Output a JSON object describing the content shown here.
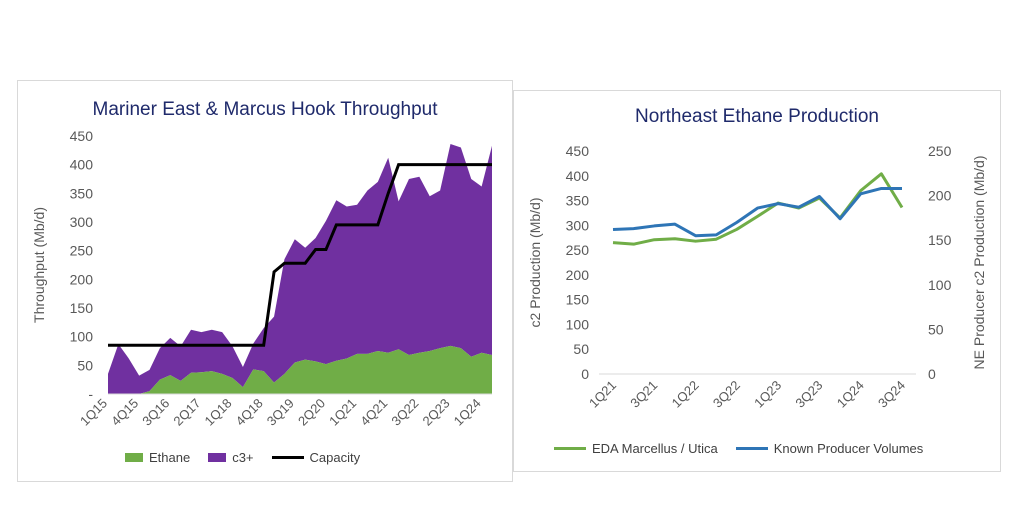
{
  "chart_data": [
    {
      "type": "area",
      "title": "Mariner East & Marcus Hook Throughput",
      "ylabel": "Throughput (Mb/d)",
      "ylim": [
        0,
        450
      ],
      "yticks": [
        "-",
        "50",
        "100",
        "150",
        "200",
        "250",
        "300",
        "350",
        "400",
        "450"
      ],
      "x_labels": [
        "1Q15",
        "4Q15",
        "3Q16",
        "2Q17",
        "1Q18",
        "4Q18",
        "3Q19",
        "2Q20",
        "1Q21",
        "4Q21",
        "3Q22",
        "2Q23",
        "1Q24"
      ],
      "series": [
        {
          "name": "Ethane",
          "type": "area",
          "color": "#70ad47",
          "values": [
            0,
            0,
            0,
            0,
            5,
            25,
            33,
            23,
            37,
            38,
            40,
            35,
            28,
            12,
            43,
            40,
            20,
            35,
            55,
            60,
            57,
            52,
            58,
            62,
            70,
            70,
            75,
            72,
            78,
            68,
            72,
            75,
            80,
            84,
            80,
            65,
            72,
            68
          ]
        },
        {
          "name": "c3+",
          "type": "area",
          "color": "#7030a0",
          "values": [
            35,
            87,
            62,
            32,
            37,
            55,
            65,
            60,
            75,
            70,
            72,
            73,
            55,
            35,
            45,
            75,
            115,
            200,
            215,
            195,
            215,
            250,
            280,
            265,
            260,
            285,
            295,
            340,
            258,
            307,
            307,
            270,
            275,
            352,
            350,
            310,
            290,
            365
          ]
        },
        {
          "name": "Capacity",
          "type": "line",
          "color": "#000000",
          "values": [
            85,
            85,
            85,
            85,
            85,
            85,
            85,
            85,
            85,
            85,
            85,
            85,
            85,
            85,
            85,
            85,
            213,
            228,
            228,
            228,
            252,
            252,
            295,
            295,
            295,
            295,
            295,
            350,
            400,
            400,
            400,
            400,
            400,
            400,
            400,
            400,
            400,
            400
          ]
        }
      ]
    },
    {
      "type": "line",
      "title": "Northeast Ethane Production",
      "ylabel": "c2 Production (Mb/d)",
      "y2label": "NE Producer c2 Production (Mb/d)",
      "ylim": [
        0,
        450
      ],
      "y2lim": [
        0,
        250
      ],
      "yticks": [
        "0",
        "50",
        "100",
        "150",
        "200",
        "250",
        "300",
        "350",
        "400",
        "450"
      ],
      "y2ticks": [
        "0",
        "50",
        "100",
        "150",
        "200",
        "250"
      ],
      "x_labels": [
        "1Q21",
        "3Q21",
        "1Q22",
        "3Q22",
        "1Q23",
        "3Q23",
        "1Q24",
        "3Q24"
      ],
      "series": [
        {
          "name": "EDA Marcellus / Utica",
          "axis": "left",
          "color": "#70ad47",
          "values": [
            265,
            262,
            271,
            273,
            268,
            272,
            292,
            318,
            345,
            335,
            355,
            315,
            370,
            404,
            336
          ]
        },
        {
          "name": "Known Producer Volumes",
          "axis": "right",
          "color": "#2e75b6",
          "values": [
            162,
            163,
            166,
            168,
            155,
            156,
            170,
            186,
            191,
            187,
            199,
            174,
            202,
            208,
            208
          ]
        }
      ]
    }
  ]
}
